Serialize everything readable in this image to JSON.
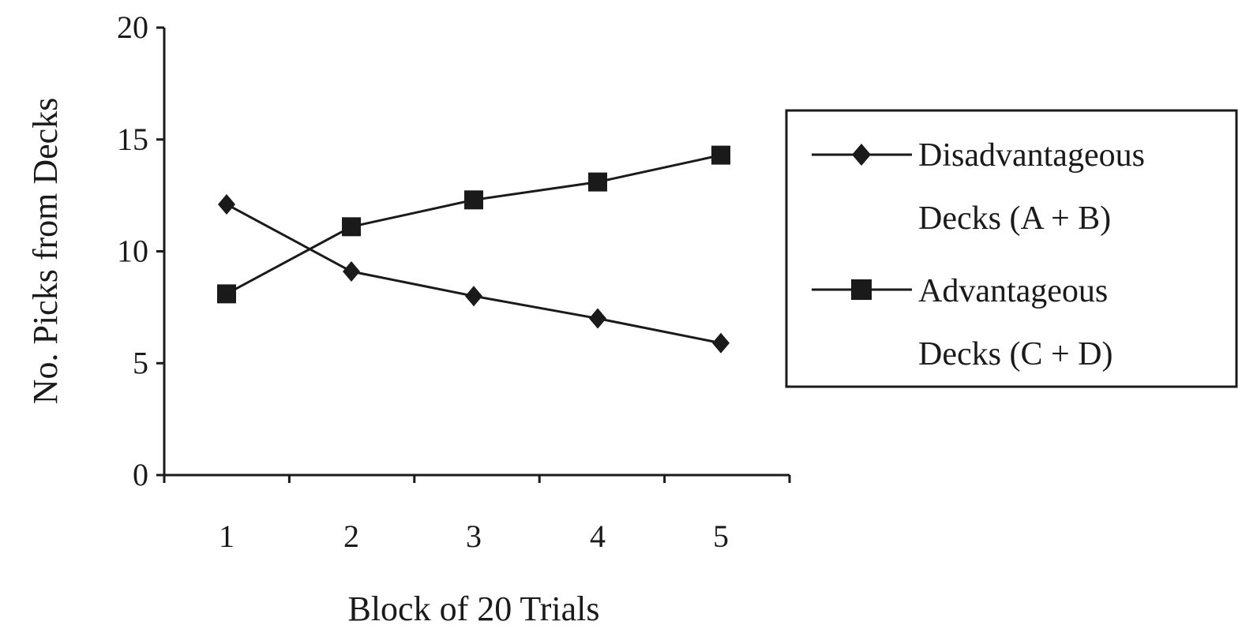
{
  "chart_data": {
    "type": "line",
    "title": "",
    "xlabel": "Block of 20 Trials",
    "ylabel": "No. Picks from Decks",
    "categories": [
      "1",
      "2",
      "3",
      "4",
      "5"
    ],
    "ylim": [
      0,
      20
    ],
    "yticks": [
      "0",
      "5",
      "10",
      "15",
      "20"
    ],
    "grid": false,
    "legend_position": "right",
    "series": [
      {
        "name_line1": "Disadvantageous",
        "name_line2": "Decks (A + B)",
        "marker": "diamond",
        "values": [
          12.1,
          9.1,
          8.0,
          7.0,
          5.9
        ]
      },
      {
        "name_line1": "Advantageous",
        "name_line2": "Decks (C + D)",
        "marker": "square",
        "values": [
          8.1,
          11.1,
          12.3,
          13.1,
          14.3
        ]
      }
    ]
  }
}
